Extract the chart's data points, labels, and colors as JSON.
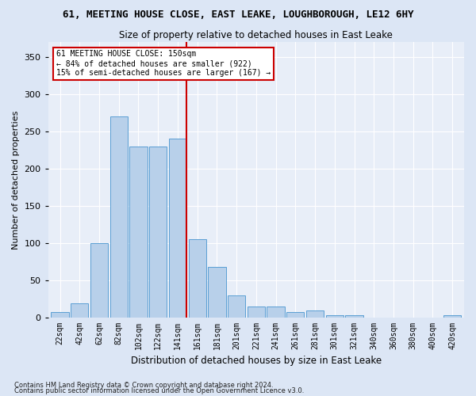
{
  "title": "61, MEETING HOUSE CLOSE, EAST LEAKE, LOUGHBOROUGH, LE12 6HY",
  "subtitle": "Size of property relative to detached houses in East Leake",
  "xlabel": "Distribution of detached houses by size in East Leake",
  "ylabel": "Number of detached properties",
  "bar_color": "#b8d0ea",
  "bar_edge_color": "#5a9fd4",
  "background_color": "#e8eef8",
  "grid_color": "#ffffff",
  "annotation_line_color": "#cc0000",
  "annotation_box_color": "#cc0000",
  "annotation_text": "61 MEETING HOUSE CLOSE: 150sqm\n← 84% of detached houses are smaller (922)\n15% of semi-detached houses are larger (167) →",
  "categories": [
    "22sqm",
    "42sqm",
    "62sqm",
    "82sqm",
    "102sqm",
    "122sqm",
    "141sqm",
    "161sqm",
    "181sqm",
    "201sqm",
    "221sqm",
    "241sqm",
    "261sqm",
    "281sqm",
    "301sqm",
    "321sqm",
    "340sqm",
    "360sqm",
    "380sqm",
    "400sqm",
    "420sqm"
  ],
  "values": [
    7,
    19,
    100,
    270,
    230,
    230,
    240,
    105,
    68,
    30,
    15,
    15,
    7,
    10,
    3,
    3,
    0,
    0,
    0,
    0,
    3
  ],
  "ylim": [
    0,
    370
  ],
  "yticks": [
    0,
    50,
    100,
    150,
    200,
    250,
    300,
    350
  ],
  "footnote1": "Contains HM Land Registry data © Crown copyright and database right 2024.",
  "footnote2": "Contains public sector information licensed under the Open Government Licence v3.0."
}
